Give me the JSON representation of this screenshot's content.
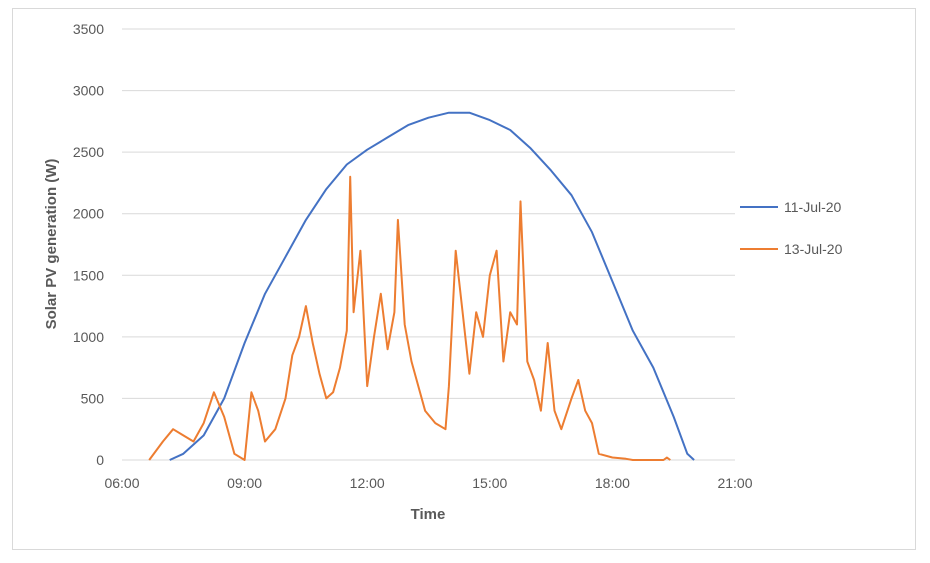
{
  "chart_data": {
    "type": "line",
    "title": "",
    "xlabel": "Time",
    "ylabel": "Solar PV generation (W)",
    "xlim": [
      "06:00",
      "21:00"
    ],
    "ylim": [
      0,
      3500
    ],
    "xticks": [
      "06:00",
      "09:00",
      "12:00",
      "15:00",
      "18:00",
      "21:00"
    ],
    "yticks": [
      0,
      500,
      1000,
      1500,
      2000,
      2500,
      3000,
      3500
    ],
    "grid": "horizontal",
    "legend": "right",
    "series": [
      {
        "name": "11-Jul-20",
        "color": "#4472c4",
        "x": [
          "07:10",
          "07:30",
          "08:00",
          "08:30",
          "09:00",
          "09:30",
          "10:00",
          "10:30",
          "11:00",
          "11:30",
          "12:00",
          "12:30",
          "13:00",
          "13:30",
          "14:00",
          "14:30",
          "15:00",
          "15:30",
          "16:00",
          "16:30",
          "17:00",
          "17:30",
          "18:00",
          "18:30",
          "19:00",
          "19:30",
          "19:50",
          "20:00"
        ],
        "values": [
          0,
          50,
          200,
          500,
          950,
          1350,
          1650,
          1950,
          2200,
          2400,
          2520,
          2620,
          2720,
          2780,
          2820,
          2820,
          2760,
          2680,
          2530,
          2350,
          2150,
          1850,
          1450,
          1050,
          750,
          350,
          50,
          0
        ]
      },
      {
        "name": "13-Jul-20",
        "color": "#ed7d31",
        "x": [
          "06:40",
          "07:00",
          "07:15",
          "07:30",
          "07:45",
          "08:00",
          "08:15",
          "08:30",
          "08:45",
          "09:00",
          "09:10",
          "09:20",
          "09:30",
          "09:45",
          "10:00",
          "10:10",
          "10:20",
          "10:30",
          "10:40",
          "10:50",
          "11:00",
          "11:10",
          "11:20",
          "11:30",
          "11:35",
          "11:40",
          "11:50",
          "12:00",
          "12:10",
          "12:20",
          "12:30",
          "12:40",
          "12:45",
          "12:55",
          "13:05",
          "13:15",
          "13:25",
          "13:40",
          "13:55",
          "14:00",
          "14:10",
          "14:20",
          "14:30",
          "14:40",
          "14:50",
          "15:00",
          "15:10",
          "15:20",
          "15:30",
          "15:40",
          "15:45",
          "15:55",
          "16:05",
          "16:15",
          "16:25",
          "16:35",
          "16:45",
          "17:00",
          "17:10",
          "17:20",
          "17:30",
          "17:40",
          "18:00",
          "18:20",
          "18:30",
          "19:15",
          "19:20",
          "19:25"
        ],
        "values": [
          0,
          150,
          250,
          200,
          150,
          300,
          550,
          350,
          50,
          0,
          550,
          400,
          150,
          250,
          500,
          850,
          1000,
          1250,
          950,
          700,
          500,
          550,
          750,
          1050,
          2300,
          1200,
          1700,
          600,
          1000,
          1350,
          900,
          1200,
          1950,
          1100,
          800,
          600,
          400,
          300,
          250,
          600,
          1700,
          1200,
          700,
          1200,
          1000,
          1500,
          1700,
          800,
          1200,
          1100,
          2100,
          800,
          650,
          400,
          950,
          400,
          250,
          500,
          650,
          400,
          300,
          50,
          20,
          10,
          0,
          0,
          20,
          0
        ]
      }
    ]
  }
}
